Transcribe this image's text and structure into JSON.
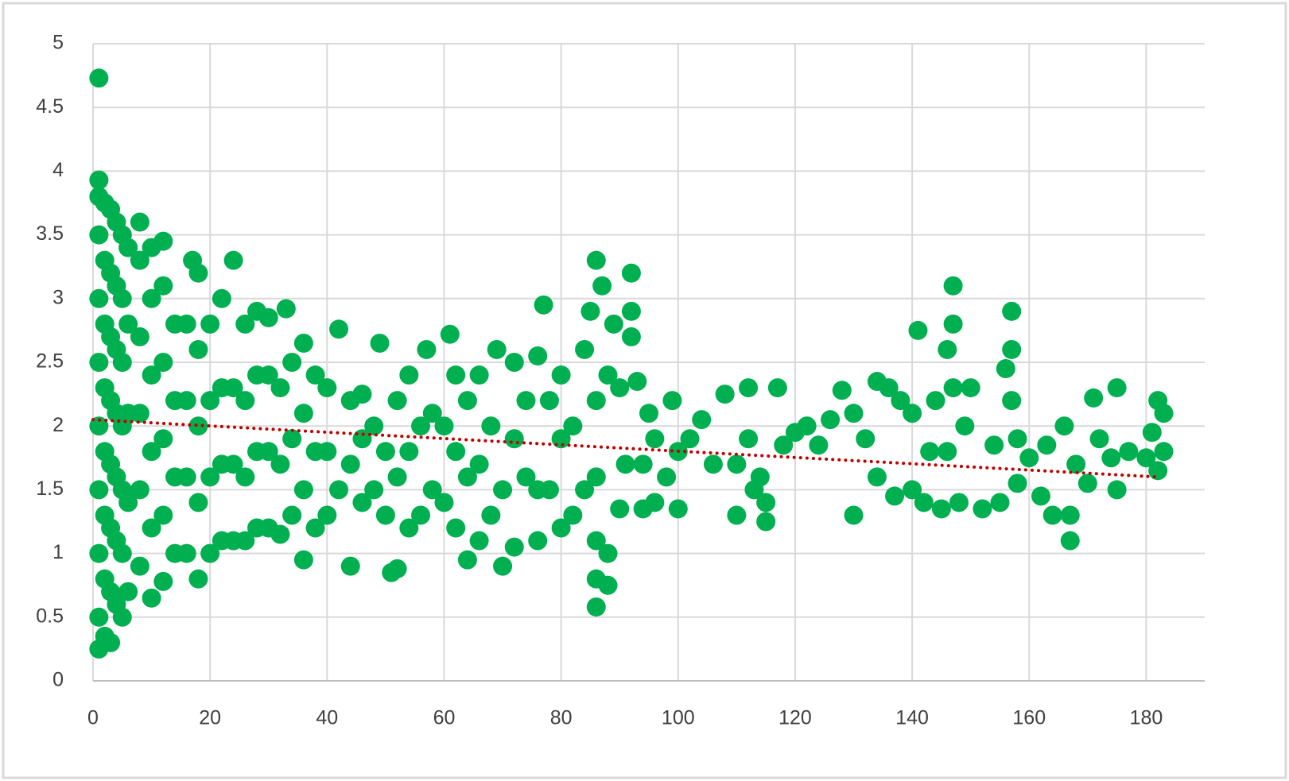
{
  "chart_data": {
    "type": "scatter",
    "xlim": [
      0,
      190
    ],
    "ylim": [
      0,
      5
    ],
    "xticks": [
      0,
      20,
      40,
      60,
      80,
      100,
      120,
      140,
      160,
      180
    ],
    "yticks": [
      0,
      0.5,
      1,
      1.5,
      2,
      2.5,
      3,
      3.5,
      4,
      4.5,
      5
    ],
    "grid": true,
    "series": [
      {
        "color": "#00b050",
        "x": [
          1,
          1,
          1,
          1,
          1,
          1,
          1,
          1,
          1,
          1,
          1,
          2,
          2,
          2,
          2,
          2,
          2,
          2,
          2,
          3,
          3,
          3,
          3,
          3,
          3,
          3,
          3,
          4,
          4,
          4,
          4,
          4,
          4,
          4,
          5,
          5,
          5,
          5,
          5,
          5,
          5,
          6,
          6,
          6,
          6,
          6,
          8,
          8,
          8,
          8,
          8,
          8,
          10,
          10,
          10,
          10,
          10,
          10,
          12,
          12,
          12,
          12,
          12,
          12,
          14,
          14,
          14,
          14,
          16,
          16,
          16,
          16,
          17,
          18,
          18,
          18,
          18,
          18,
          20,
          20,
          20,
          20,
          22,
          22,
          22,
          22,
          24,
          24,
          24,
          24,
          26,
          26,
          26,
          26,
          28,
          28,
          28,
          28,
          30,
          30,
          30,
          30,
          32,
          32,
          32,
          33,
          34,
          34,
          34,
          36,
          36,
          36,
          36,
          38,
          38,
          38,
          40,
          40,
          40,
          42,
          42,
          44,
          44,
          44,
          46,
          46,
          46,
          48,
          48,
          49,
          50,
          50,
          51,
          52,
          52,
          52,
          54,
          54,
          54,
          56,
          56,
          57,
          58,
          58,
          60,
          60,
          61,
          62,
          62,
          62,
          64,
          64,
          64,
          66,
          66,
          66,
          68,
          68,
          69,
          70,
          70,
          72,
          72,
          72,
          74,
          74,
          76,
          76,
          76,
          77,
          78,
          78,
          80,
          80,
          80,
          82,
          82,
          84,
          84,
          85,
          86,
          86,
          86,
          86,
          86,
          86,
          87,
          88,
          88,
          88,
          89,
          90,
          90,
          91,
          92,
          92,
          92,
          93,
          94,
          94,
          95,
          96,
          96,
          98,
          99,
          100,
          100,
          102,
          104,
          106,
          108,
          110,
          110,
          112,
          112,
          113,
          114,
          115,
          115,
          117,
          118,
          120,
          122,
          124,
          126,
          128,
          130,
          130,
          132,
          134,
          134,
          136,
          137,
          138,
          140,
          140,
          141,
          142,
          143,
          144,
          145,
          146,
          146,
          147,
          147,
          147,
          148,
          149,
          150,
          152,
          154,
          155,
          156,
          157,
          157,
          157,
          158,
          158,
          160,
          162,
          163,
          164,
          166,
          167,
          167,
          168,
          170,
          171,
          172,
          174,
          175,
          175,
          177,
          180,
          181,
          182,
          183,
          183,
          182
        ],
        "values": [
          4.73,
          3.93,
          0.25,
          0.5,
          1,
          1.5,
          2,
          2.5,
          3,
          3.5,
          3.8,
          0.35,
          0.8,
          1.3,
          1.8,
          2.3,
          2.8,
          3.3,
          3.75,
          0.3,
          0.7,
          1.2,
          1.7,
          2.2,
          2.7,
          3.2,
          3.7,
          0.6,
          1.1,
          1.6,
          2.1,
          2.6,
          3.1,
          3.6,
          0.5,
          1,
          1.5,
          2,
          2.5,
          3,
          3.5,
          0.7,
          1.4,
          2.1,
          2.8,
          3.4,
          0.9,
          1.5,
          2.1,
          2.7,
          3.3,
          3.6,
          0.65,
          1.2,
          1.8,
          2.4,
          3,
          3.4,
          0.78,
          1.3,
          1.9,
          2.5,
          3.1,
          3.45,
          1,
          1.6,
          2.2,
          2.8,
          1,
          1.6,
          2.2,
          2.8,
          3.3,
          0.8,
          1.4,
          2,
          2.6,
          3.2,
          1,
          1.6,
          2.2,
          2.8,
          1.1,
          1.7,
          2.3,
          3,
          1.1,
          1.7,
          2.3,
          3.3,
          1.1,
          1.6,
          2.2,
          2.8,
          1.2,
          1.8,
          2.4,
          2.9,
          1.2,
          1.8,
          2.4,
          2.85,
          1.15,
          1.7,
          2.3,
          2.92,
          1.3,
          1.9,
          2.5,
          0.95,
          1.5,
          2.1,
          2.65,
          1.2,
          1.8,
          2.4,
          1.3,
          1.8,
          2.3,
          2.76,
          1.5,
          0.9,
          1.7,
          2.2,
          1.4,
          1.9,
          2.25,
          1.5,
          2,
          2.65,
          1.3,
          1.8,
          0.85,
          0.88,
          1.6,
          2.2,
          1.2,
          1.8,
          2.4,
          1.3,
          2,
          2.6,
          1.5,
          2.1,
          1.4,
          2,
          2.72,
          1.2,
          1.8,
          2.4,
          0.95,
          1.6,
          2.2,
          1.1,
          1.7,
          2.4,
          1.3,
          2,
          2.6,
          0.9,
          1.5,
          1.05,
          1.9,
          2.5,
          1.6,
          2.2,
          1.1,
          1.5,
          2.55,
          2.95,
          1.5,
          2.2,
          1.2,
          1.9,
          2.4,
          1.3,
          2,
          1.5,
          2.6,
          2.9,
          0.58,
          0.8,
          1.1,
          1.6,
          2.2,
          3.3,
          3.1,
          0.75,
          1,
          2.4,
          2.8,
          1.35,
          2.3,
          1.7,
          2.7,
          3.2,
          2.9,
          2.35,
          1.35,
          1.7,
          2.1,
          1.4,
          1.9,
          1.6,
          2.2,
          1.35,
          1.8,
          1.9,
          2.05,
          1.7,
          2.25,
          1.3,
          1.7,
          2.3,
          1.9,
          1.5,
          1.6,
          1.25,
          1.4,
          2.3,
          1.85,
          1.95,
          2,
          1.85,
          2.05,
          2.28,
          1.3,
          2.1,
          1.9,
          2.35,
          1.6,
          2.3,
          1.45,
          2.2,
          1.5,
          2.1,
          2.75,
          1.4,
          1.8,
          2.2,
          1.35,
          2.6,
          1.8,
          3.1,
          2.8,
          2.3,
          1.4,
          2,
          2.3,
          1.35,
          1.85,
          1.4,
          2.45,
          2.9,
          2.6,
          2.2,
          1.9,
          1.55,
          1.75,
          1.45,
          1.85,
          1.3,
          2,
          1.1,
          1.3,
          1.7,
          1.55,
          2.22,
          1.9,
          1.75,
          1.5,
          2.3,
          1.8,
          1.75,
          1.95,
          2.2,
          1.8,
          2.1,
          1.65
        ]
      }
    ],
    "trendline": {
      "color": "#c00000",
      "x": [
        0,
        182
      ],
      "values": [
        2.05,
        1.6
      ]
    }
  }
}
